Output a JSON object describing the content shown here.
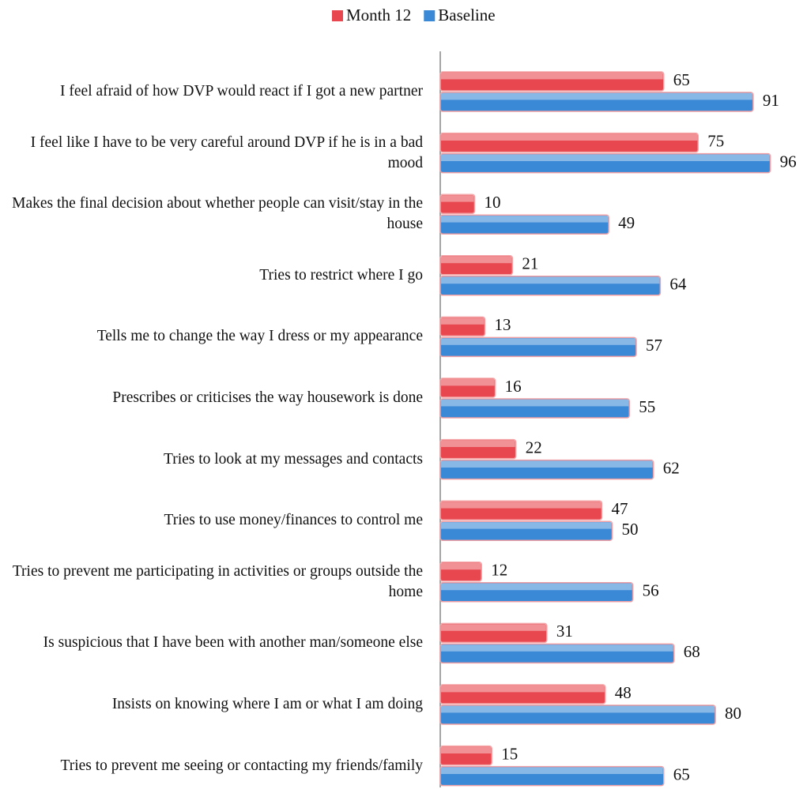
{
  "chart_data": {
    "type": "bar",
    "orientation": "horizontal",
    "categories": [
      "I feel afraid of how DVP would react if I got a new partner",
      "I feel like I have to be very careful around DVP if he is in a bad mood",
      "Makes the final decision about whether people can visit/stay in the house",
      "Tries to restrict where I go",
      "Tells me to change the way I dress or my appearance",
      "Prescribes or criticises the way housework is done",
      "Tries to look at my messages and contacts",
      "Tries to use money/finances to control me",
      "Tries to prevent me participating in activities or groups outside the home",
      "Is suspicious that I have been with another man/someone else",
      "Insists on knowing where I am or what I am doing",
      "Tries to prevent me seeing or contacting my friends/family"
    ],
    "series": [
      {
        "name": "Month 12",
        "color": "#e8474f",
        "values": [
          65,
          75,
          10,
          21,
          13,
          16,
          22,
          47,
          12,
          31,
          48,
          15
        ]
      },
      {
        "name": "Baseline",
        "color": "#3a89d6",
        "values": [
          91,
          96,
          49,
          64,
          57,
          55,
          62,
          50,
          56,
          68,
          80,
          65
        ]
      }
    ],
    "legend": "top"
  }
}
